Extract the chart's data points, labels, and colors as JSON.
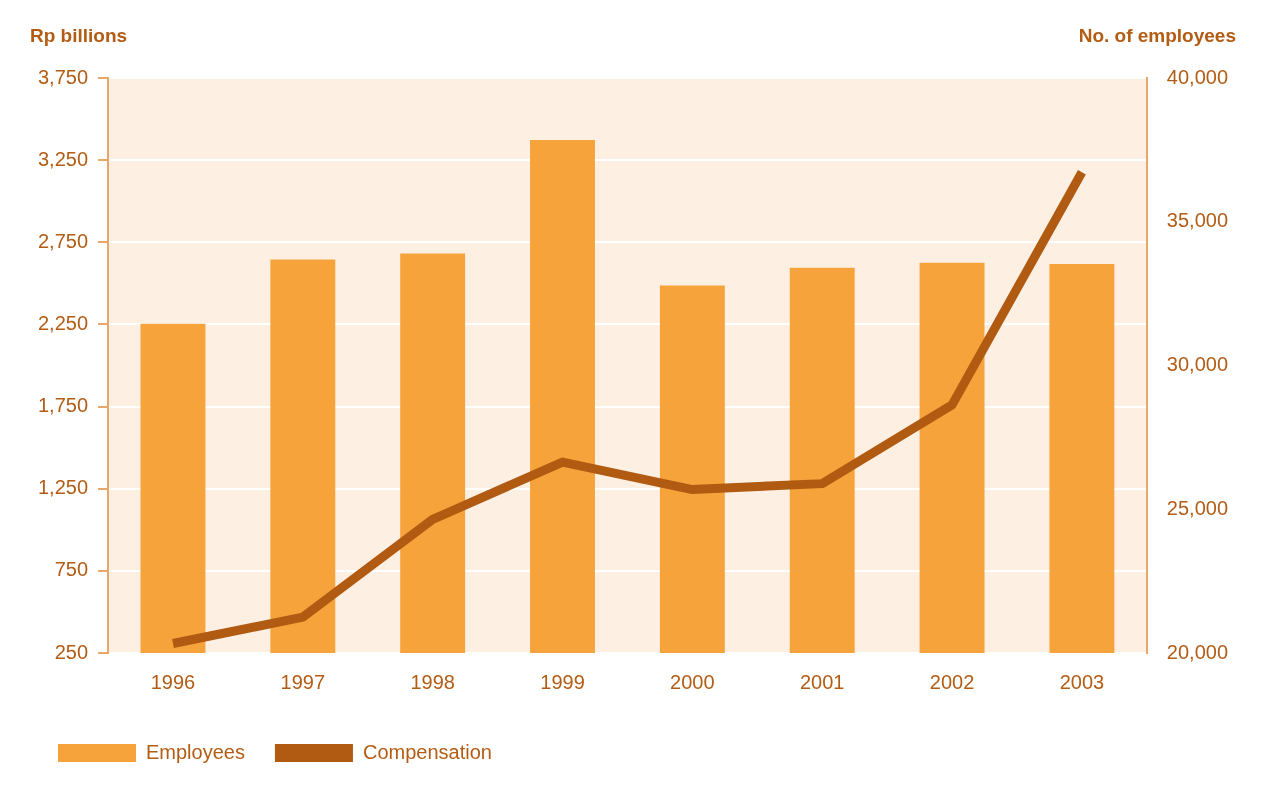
{
  "chart_data": {
    "type": "bar",
    "ylabel": "Rp billions",
    "y2label": "No. of employees",
    "categories": [
      "1996",
      "1997",
      "1998",
      "1999",
      "2000",
      "2001",
      "2002",
      "2003"
    ],
    "series": [
      {
        "name": "Employees",
        "axis": "y2",
        "color": "#f7a33b",
        "values": [
          31450,
          33690,
          33900,
          37840,
          32780,
          33400,
          33570,
          33530
        ]
      },
      {
        "name": "Compensation",
        "type": "line",
        "color": "#b05a12",
        "values": [
          308,
          468,
          1063,
          1412,
          1245,
          1281,
          1760,
          3176
        ]
      }
    ],
    "ylim": [
      250,
      3750
    ],
    "yticks": [
      250,
      750,
      {
        "value": 1250,
        "label": "1,250"
      },
      {
        "value": 1750,
        "label": "1,750"
      },
      {
        "value": 2250,
        "label": "2,250"
      },
      {
        "value": 2750,
        "label": "2,750"
      },
      {
        "value": 3250,
        "label": "3,250"
      },
      {
        "value": 3750,
        "label": "3,750"
      }
    ],
    "y2lim": [
      20000,
      40000
    ],
    "y2ticks": [
      {
        "value": 20000,
        "label": "20,000"
      },
      {
        "value": 25000,
        "label": "25,000"
      },
      {
        "value": 30000,
        "label": "30,000"
      },
      {
        "value": 35000,
        "label": "35,000"
      },
      {
        "value": 40000,
        "label": "40,000"
      }
    ],
    "grid": "y",
    "legend": "bottom left",
    "marker": "none"
  }
}
